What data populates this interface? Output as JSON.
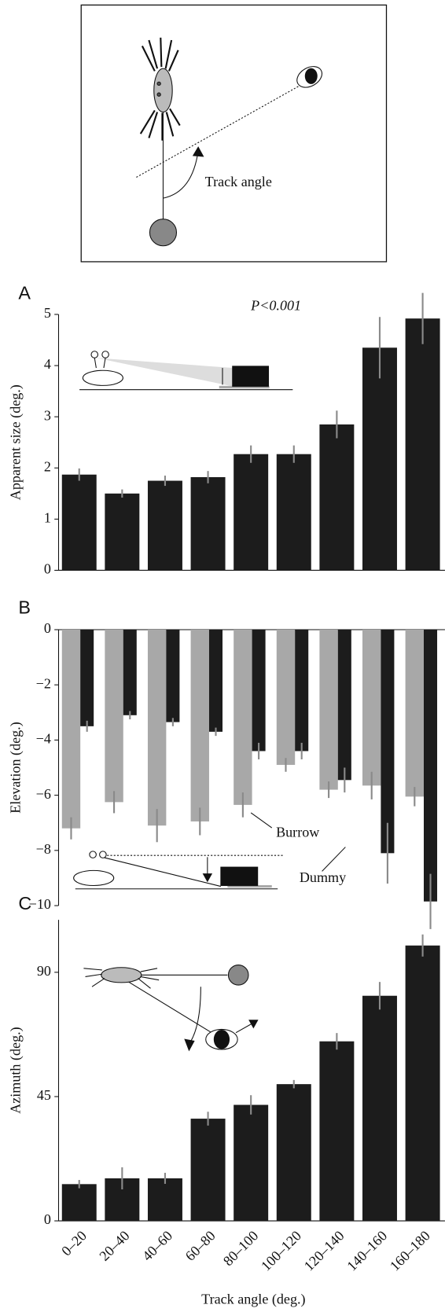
{
  "diagram": {
    "label": "Track angle"
  },
  "chart_data": [
    {
      "type": "bar",
      "panel_label": "A",
      "y_label": "Apparent size (deg.)",
      "annotation": "P<0.001",
      "ylim": [
        0,
        5
      ],
      "yticks": [
        0,
        1,
        2,
        3,
        4,
        5
      ],
      "color": "#1c1c1c",
      "error_color": "#8a8a8a",
      "values": [
        1.87,
        1.5,
        1.75,
        1.82,
        2.27,
        2.27,
        2.85,
        4.35,
        4.92
      ],
      "errors": [
        0.12,
        0.08,
        0.1,
        0.12,
        0.17,
        0.17,
        0.27,
        0.6,
        0.5
      ]
    },
    {
      "type": "grouped_bar",
      "panel_label": "B",
      "y_label": "Elevation (deg.)",
      "ylim": [
        -10,
        0
      ],
      "yticks": [
        {
          "value": -10,
          "label": "−10"
        },
        {
          "value": -8,
          "label": "−8"
        },
        {
          "value": -6,
          "label": "−6"
        },
        {
          "value": -4,
          "label": "−4"
        },
        {
          "value": -2,
          "label": "−2"
        },
        0
      ],
      "error_color": "#8a8a8a",
      "series": [
        {
          "name": "Burrow",
          "color": "#a8a8a8",
          "values": [
            -7.2,
            -6.25,
            -7.1,
            -6.95,
            -6.35,
            -4.9,
            -5.8,
            -5.65,
            -6.05
          ],
          "errors": [
            0.4,
            0.4,
            0.6,
            0.5,
            0.45,
            0.25,
            0.3,
            0.5,
            0.35
          ]
        },
        {
          "name": "Dummy",
          "color": "#1c1c1c",
          "values": [
            -3.5,
            -3.1,
            -3.35,
            -3.7,
            -4.4,
            -4.4,
            -5.45,
            -8.1,
            -9.85
          ],
          "errors": [
            0.2,
            0.15,
            0.15,
            0.15,
            0.3,
            0.3,
            0.45,
            1.1,
            1.0
          ]
        }
      ]
    },
    {
      "type": "bar",
      "panel_label": "C",
      "y_label": "Azimuth (deg.)",
      "x_label": "Track angle (deg.)",
      "ylim": [
        0,
        109
      ],
      "yticks": [
        0,
        45,
        90
      ],
      "color": "#1c1c1c",
      "error_color": "#8a8a8a",
      "categories": [
        "0–20",
        "20–40",
        "40–60",
        "60–80",
        "80–100",
        "100–120",
        "120–140",
        "140–160",
        "160–180"
      ],
      "values": [
        13.3,
        15.4,
        15.4,
        37,
        42,
        49.5,
        65,
        81.5,
        99.7
      ],
      "errors": [
        1.5,
        4,
        2,
        2.5,
        3.5,
        1.5,
        3,
        5,
        4
      ]
    }
  ]
}
